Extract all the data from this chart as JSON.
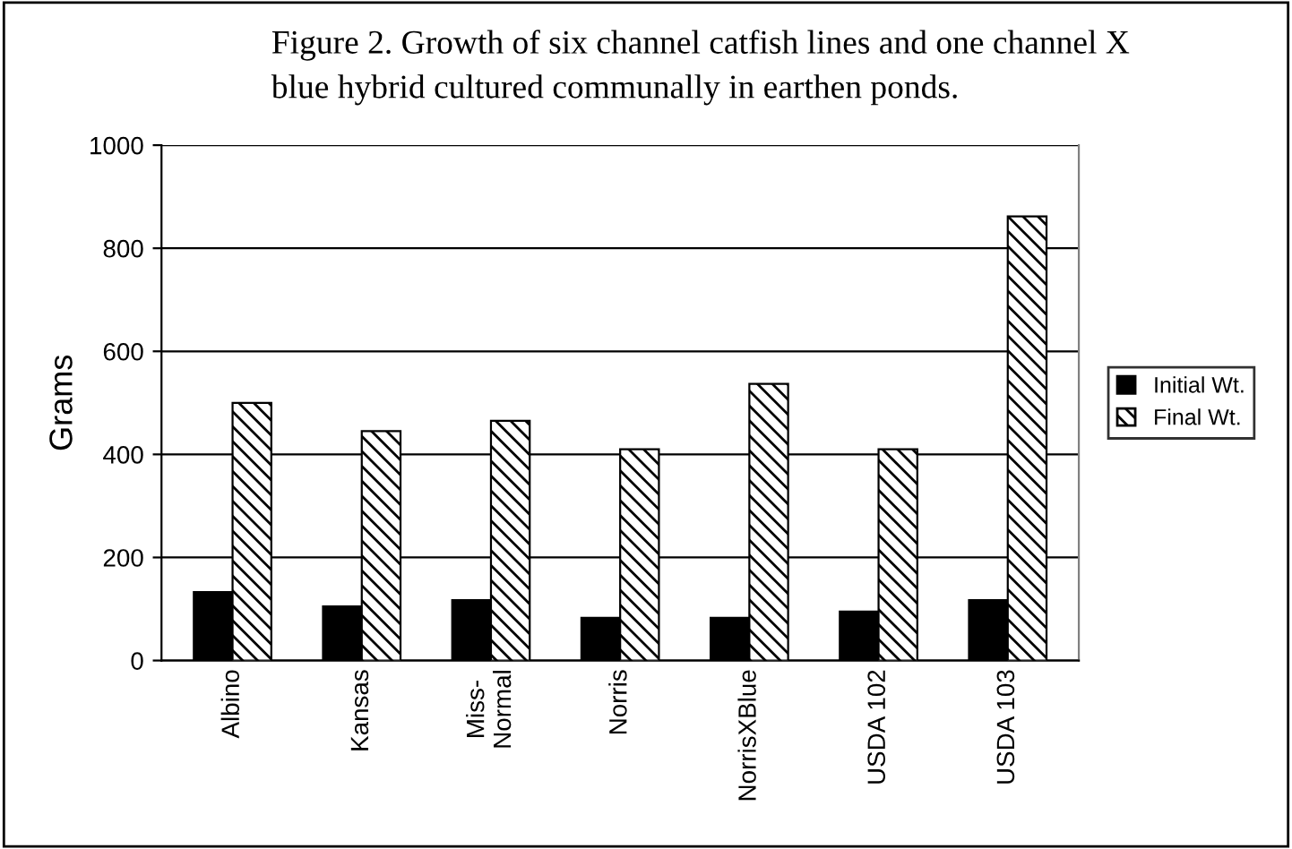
{
  "chart_data": {
    "type": "bar",
    "title": "Figure 2. Growth of six channel catfish lines and one channel X\nblue hybrid cultured communally in earthen ponds.",
    "ylabel": "Grams",
    "categories": [
      "Albino",
      "Kansas",
      "Miss-\nNormal",
      "Norris",
      "NorrisXBlue",
      "USDA 102",
      "USDA 103"
    ],
    "series": [
      {
        "name": "Initial Wt.",
        "color": "#000000",
        "values": [
          133,
          105,
          117,
          83,
          83,
          95,
          117
        ]
      },
      {
        "name": "Final Wt.",
        "color": "#000000",
        "values": [
          500,
          445,
          465,
          410,
          537,
          410,
          862
        ]
      }
    ],
    "ylim": [
      0,
      1000
    ],
    "yticks": [
      0,
      200,
      400,
      600,
      800,
      1000
    ],
    "grid": "y",
    "legend": "right"
  }
}
